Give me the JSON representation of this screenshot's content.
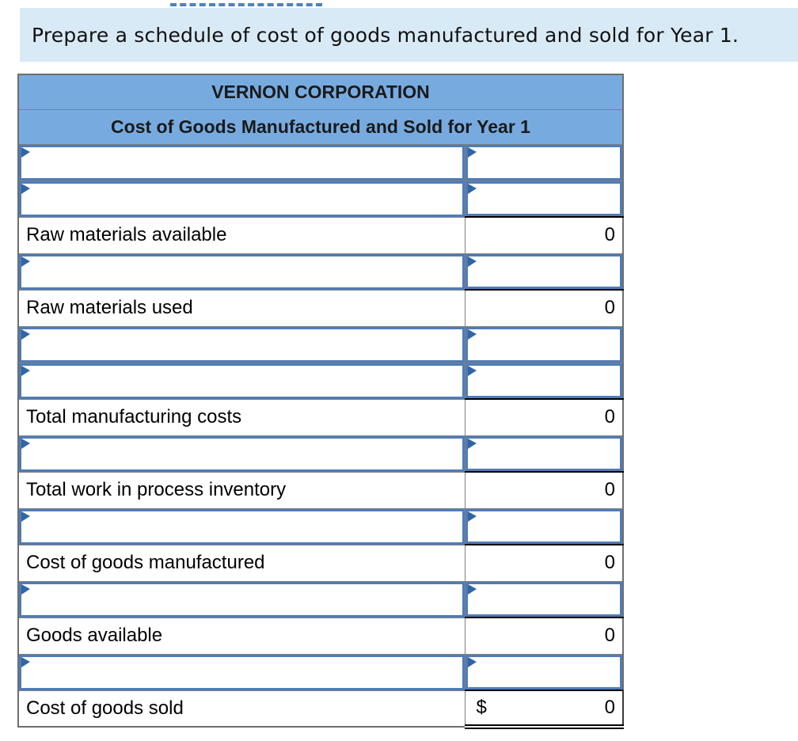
{
  "instruction": {
    "text": "Prepare a schedule of cost of goods manufactured and sold for Year 1."
  },
  "table": {
    "title": "VERNON CORPORATION",
    "subtitle": "Cost of Goods Manufactured and Sold for Year 1",
    "rows": [
      {
        "type": "input"
      },
      {
        "type": "input"
      },
      {
        "type": "total",
        "label": "Raw materials available",
        "value": "0"
      },
      {
        "type": "input"
      },
      {
        "type": "total",
        "label": "Raw materials used",
        "value": "0"
      },
      {
        "type": "input"
      },
      {
        "type": "input"
      },
      {
        "type": "total",
        "label": "Total manufacturing costs",
        "value": "0"
      },
      {
        "type": "input"
      },
      {
        "type": "total",
        "label": "Total work in process inventory",
        "value": "0"
      },
      {
        "type": "input"
      },
      {
        "type": "total",
        "label": "Cost of goods manufactured",
        "value": "0"
      },
      {
        "type": "input"
      },
      {
        "type": "total",
        "label": "Goods available",
        "value": "0"
      },
      {
        "type": "input"
      },
      {
        "type": "total",
        "label": "Cost of goods sold",
        "value": "0",
        "currency": "$",
        "final": true
      }
    ],
    "colors": {
      "header_bg": "#77abe0",
      "banner_bg": "#d9eaf7",
      "input_border": "#4f7cb8",
      "marker": "#2f66a5",
      "grid_border": "#808080",
      "total_rule": "#000000",
      "dashed_line": "#4f81bd"
    }
  }
}
